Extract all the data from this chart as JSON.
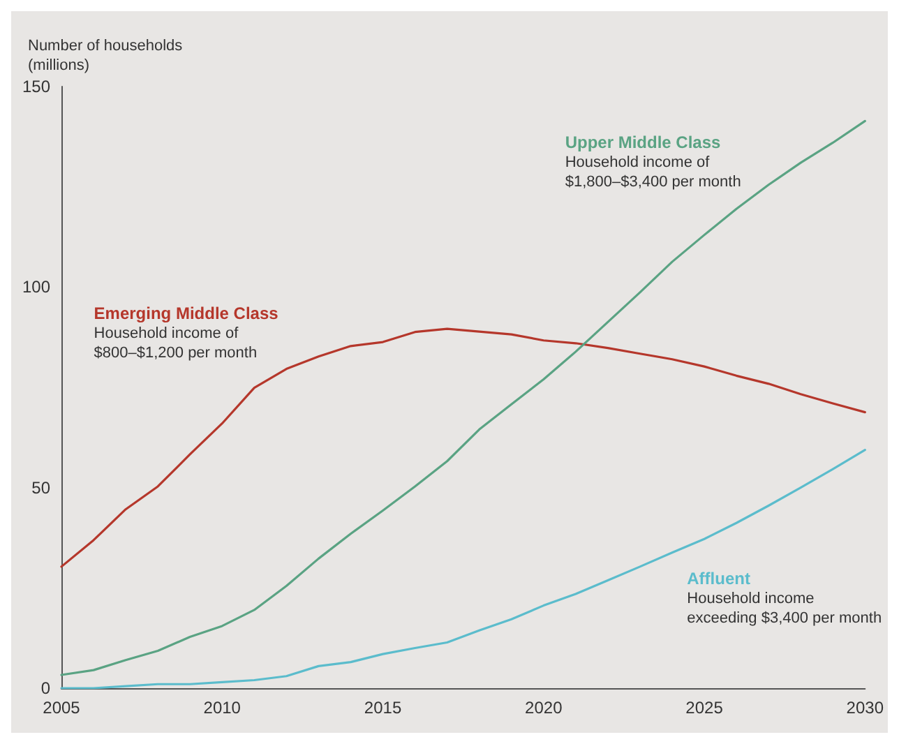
{
  "chart_data": {
    "type": "line",
    "ylabel": "Number of households\n(millions)",
    "x": [
      2005,
      2006,
      2007,
      2008,
      2009,
      2010,
      2011,
      2012,
      2013,
      2014,
      2015,
      2016,
      2017,
      2018,
      2019,
      2020,
      2021,
      2022,
      2023,
      2024,
      2025,
      2026,
      2027,
      2028,
      2029,
      2030
    ],
    "series": [
      {
        "name": "Emerging Middle Class",
        "color": "#b5372b",
        "values": [
          30.3,
          36.9,
          44.6,
          50.3,
          58.3,
          66,
          74.9,
          79.6,
          82.7,
          85.3,
          86.3,
          88.8,
          89.6,
          88.9,
          88.2,
          86.7,
          86,
          84.8,
          83.4,
          82,
          80.2,
          77.9,
          75.9,
          73.3,
          71,
          68.8
        ]
      },
      {
        "name": "Upper Middle Class",
        "color": "#5aa383",
        "values": [
          3.3,
          4.5,
          7,
          9.3,
          12.8,
          15.5,
          19.5,
          25.5,
          32.3,
          38.5,
          44.3,
          50.3,
          56.6,
          64.5,
          70.8,
          77,
          83.9,
          91.3,
          98.7,
          106.3,
          113,
          119.5,
          125.5,
          131,
          136,
          141.4
        ]
      },
      {
        "name": "Affluent",
        "color": "#5bbccc",
        "values": [
          0,
          0,
          0.5,
          1,
          1,
          1.5,
          2,
          3,
          5.5,
          6.5,
          8.5,
          10,
          11.4,
          14.4,
          17.2,
          20.6,
          23.5,
          26.9,
          30.3,
          33.8,
          37.2,
          41.2,
          45.5,
          50,
          54.6,
          59.4
        ]
      }
    ],
    "annotations": [
      "Household income of\n$800–$1,200 per month",
      "Household income of\n$1,800–$3,400 per month",
      "Household income\nexceeding $3,400 per month"
    ],
    "xlim": [
      2005,
      2030
    ],
    "xticks": [
      2005,
      2010,
      2015,
      2020,
      2025,
      2030
    ],
    "ylim": [
      0,
      150
    ],
    "yticks": [
      0,
      50,
      100,
      150
    ],
    "grid": false,
    "legend": false,
    "marker": "none",
    "line_style": "solid"
  }
}
